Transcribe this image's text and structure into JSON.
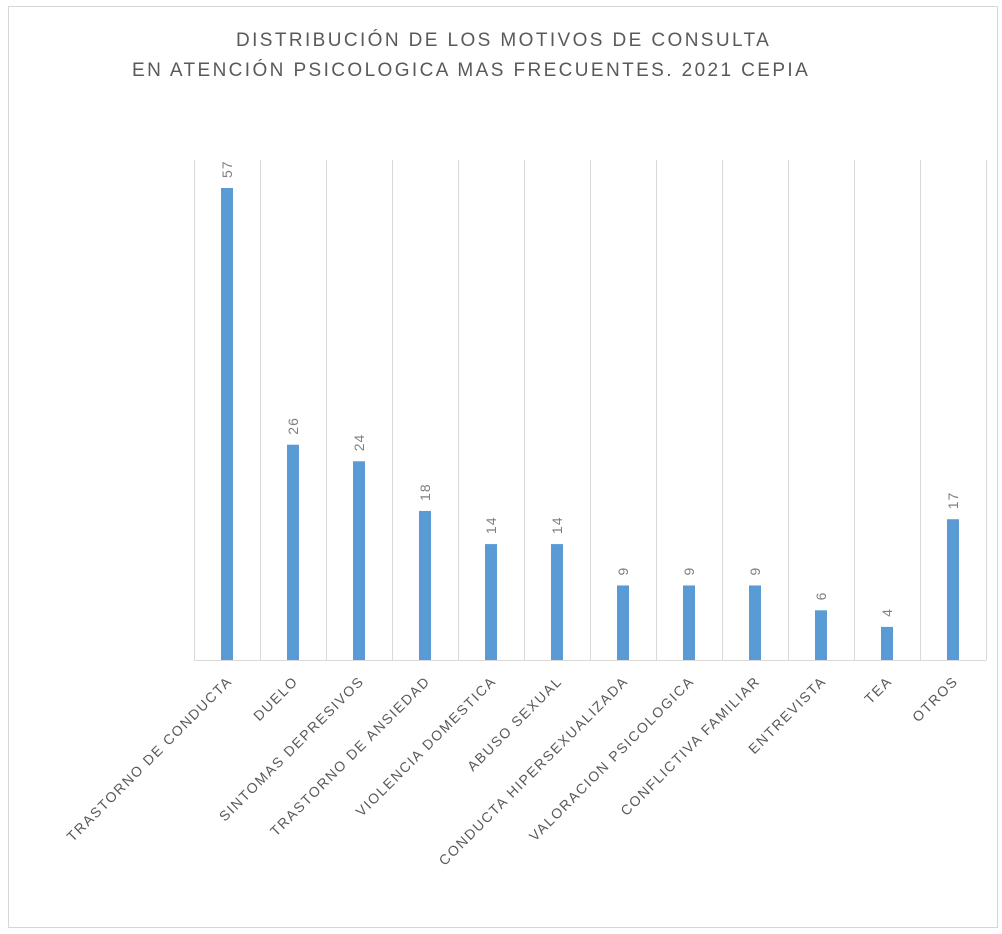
{
  "chart_data": {
    "type": "bar",
    "title_lines": [
      "DISTRIBUCIÓN DE LOS MOTIVOS DE CONSULTA",
      "EN ATENCIÓN PSICOLOGICA MAS FRECUENTES. 2021 CEPIA"
    ],
    "categories": [
      "TRASTORNO DE CONDUCTA",
      "DUELO",
      "SINTOMAS DEPRESIVOS",
      "TRASTORNO DE ANSIEDAD",
      "VIOLENCIA DOMESTICA",
      "ABUSO SEXUAL",
      "CONDUCTA HIPERSEXUALIZADA",
      "VALORACION PSICOLOGICA",
      "CONFLICTIVA FAMILIAR",
      "ENTREVISTA",
      "TEA",
      "OTROS"
    ],
    "values": [
      57,
      26,
      24,
      18,
      14,
      14,
      9,
      9,
      9,
      6,
      4,
      17
    ],
    "ylim": [
      0,
      60
    ],
    "grid": "vertical",
    "legend": "none",
    "bar_color": "#5b9bd5",
    "axis_color": "#d9d9d9"
  }
}
